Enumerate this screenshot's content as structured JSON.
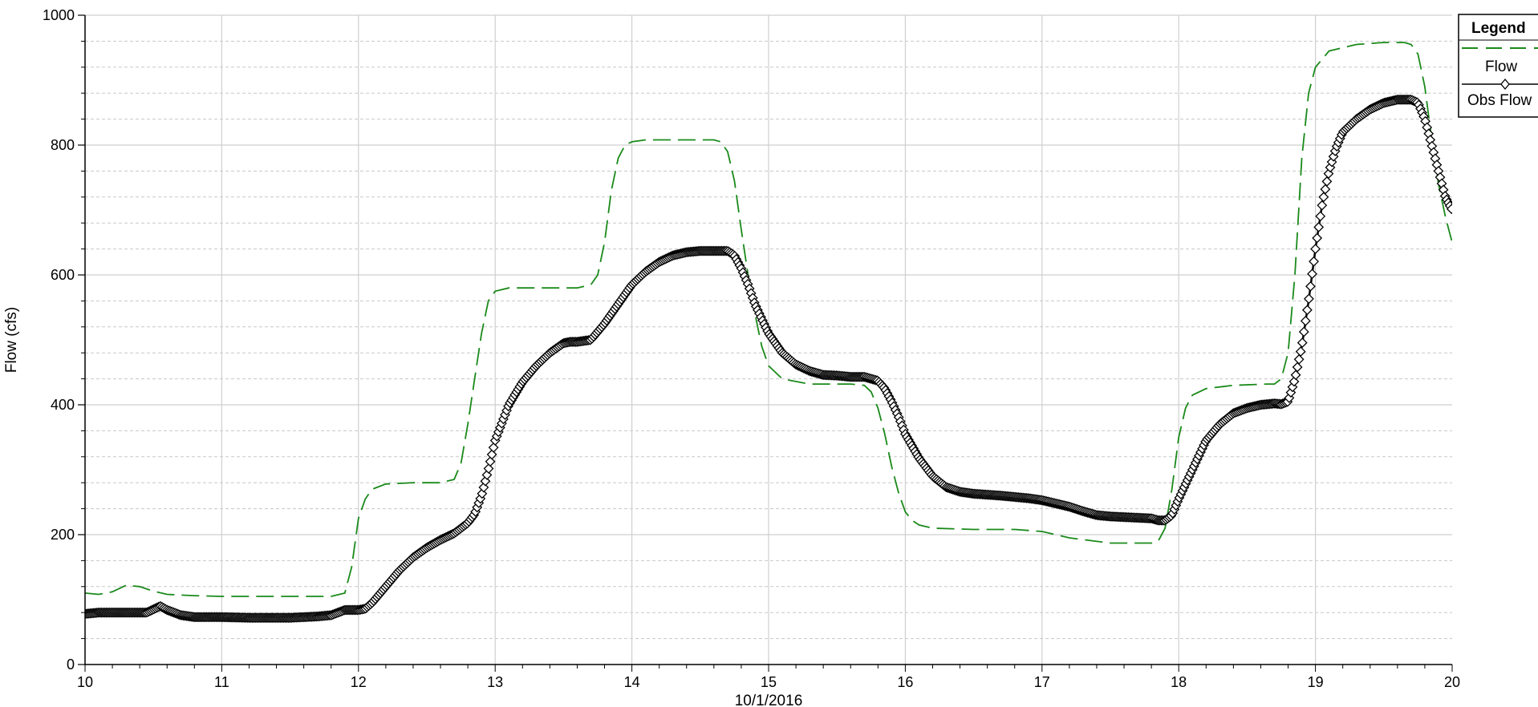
{
  "chart_data": {
    "type": "line",
    "xlabel": "10/1/2016",
    "ylabel": "Flow (cfs)",
    "xlim": [
      10,
      20
    ],
    "ylim": [
      0,
      1000
    ],
    "x_ticks": [
      "10",
      "11",
      "12",
      "13",
      "14",
      "15",
      "16",
      "17",
      "18",
      "19",
      "20"
    ],
    "y_ticks": [
      "0",
      "200",
      "400",
      "600",
      "800",
      "1000"
    ],
    "grid": true,
    "legend": {
      "title": "Legend",
      "placement": "top-right",
      "entries": [
        "Flow",
        "Obs Flow"
      ]
    },
    "series": [
      {
        "name": "Flow",
        "color": "#1a8a1a",
        "style": "dashed",
        "x": [
          10.0,
          10.1,
          10.2,
          10.3,
          10.4,
          10.5,
          10.6,
          10.8,
          11.0,
          11.5,
          11.8,
          11.9,
          11.95,
          12.0,
          12.05,
          12.1,
          12.2,
          12.4,
          12.6,
          12.7,
          12.75,
          12.8,
          12.85,
          12.9,
          12.95,
          13.0,
          13.1,
          13.3,
          13.6,
          13.7,
          13.75,
          13.8,
          13.85,
          13.9,
          13.95,
          14.0,
          14.1,
          14.3,
          14.5,
          14.6,
          14.65,
          14.7,
          14.75,
          14.8,
          14.85,
          14.9,
          14.95,
          15.0,
          15.1,
          15.3,
          15.6,
          15.7,
          15.75,
          15.8,
          15.85,
          15.9,
          15.95,
          16.0,
          16.05,
          16.1,
          16.2,
          16.5,
          16.8,
          17.0,
          17.2,
          17.5,
          17.7,
          17.8,
          17.85,
          17.9,
          17.95,
          18.0,
          18.05,
          18.1,
          18.2,
          18.4,
          18.65,
          18.7,
          18.75,
          18.8,
          18.85,
          18.9,
          18.95,
          19.0,
          19.1,
          19.3,
          19.5,
          19.6,
          19.65,
          19.7,
          19.75,
          19.8,
          19.85,
          19.9,
          19.95,
          20.0
        ],
        "y": [
          110,
          108,
          112,
          122,
          120,
          113,
          108,
          106,
          105,
          105,
          105,
          110,
          150,
          225,
          255,
          270,
          278,
          280,
          280,
          285,
          310,
          370,
          440,
          510,
          560,
          575,
          580,
          580,
          580,
          585,
          600,
          650,
          730,
          780,
          800,
          805,
          808,
          808,
          808,
          808,
          805,
          790,
          745,
          670,
          600,
          540,
          490,
          460,
          440,
          432,
          432,
          430,
          420,
          395,
          355,
          305,
          265,
          235,
          222,
          215,
          210,
          208,
          208,
          205,
          195,
          187,
          187,
          187,
          190,
          210,
          270,
          350,
          395,
          415,
          425,
          430,
          432,
          432,
          440,
          480,
          600,
          780,
          880,
          920,
          945,
          955,
          958,
          958,
          958,
          955,
          940,
          890,
          810,
          740,
          690,
          650
        ]
      },
      {
        "name": "Obs Flow",
        "color": "#000000",
        "style": "solid-diamond-markers",
        "x": [
          10.0,
          10.1,
          10.3,
          10.45,
          10.5,
          10.55,
          10.6,
          10.7,
          10.8,
          10.9,
          11.0,
          11.2,
          11.5,
          11.7,
          11.8,
          11.85,
          11.9,
          12.0,
          12.05,
          12.1,
          12.2,
          12.3,
          12.4,
          12.5,
          12.6,
          12.7,
          12.8,
          12.85,
          12.9,
          12.95,
          13.0,
          13.1,
          13.2,
          13.3,
          13.4,
          13.5,
          13.55,
          13.6,
          13.7,
          13.8,
          13.9,
          14.0,
          14.1,
          14.2,
          14.3,
          14.4,
          14.5,
          14.6,
          14.7,
          14.75,
          14.8,
          14.85,
          14.9,
          15.0,
          15.1,
          15.2,
          15.3,
          15.4,
          15.5,
          15.6,
          15.7,
          15.8,
          15.85,
          15.9,
          15.95,
          16.0,
          16.1,
          16.2,
          16.3,
          16.4,
          16.5,
          16.7,
          16.9,
          17.0,
          17.1,
          17.2,
          17.3,
          17.4,
          17.5,
          17.6,
          17.8,
          17.85,
          17.9,
          17.95,
          18.0,
          18.1,
          18.2,
          18.3,
          18.4,
          18.5,
          18.6,
          18.7,
          18.75,
          18.8,
          18.85,
          18.9,
          18.95,
          19.0,
          19.05,
          19.1,
          19.15,
          19.2,
          19.3,
          19.4,
          19.5,
          19.6,
          19.7,
          19.75,
          19.8,
          19.85,
          19.9,
          19.95,
          20.0
        ],
        "y": [
          78,
          80,
          80,
          80,
          85,
          90,
          84,
          76,
          73,
          73,
          73,
          72,
          72,
          74,
          76,
          80,
          84,
          84,
          86,
          95,
          120,
          145,
          165,
          180,
          192,
          202,
          218,
          232,
          260,
          300,
          345,
          400,
          435,
          460,
          480,
          495,
          497,
          497,
          500,
          525,
          555,
          585,
          605,
          620,
          630,
          635,
          637,
          637,
          637,
          630,
          610,
          585,
          555,
          510,
          480,
          462,
          452,
          446,
          445,
          443,
          443,
          437,
          425,
          405,
          382,
          355,
          318,
          290,
          273,
          266,
          263,
          260,
          256,
          253,
          248,
          243,
          236,
          230,
          228,
          227,
          225,
          222,
          222,
          230,
          255,
          300,
          345,
          370,
          387,
          395,
          400,
          402,
          401,
          405,
          440,
          490,
          560,
          640,
          710,
          760,
          795,
          820,
          840,
          855,
          865,
          870,
          870,
          865,
          840,
          800,
          760,
          720,
          700
        ]
      }
    ]
  }
}
